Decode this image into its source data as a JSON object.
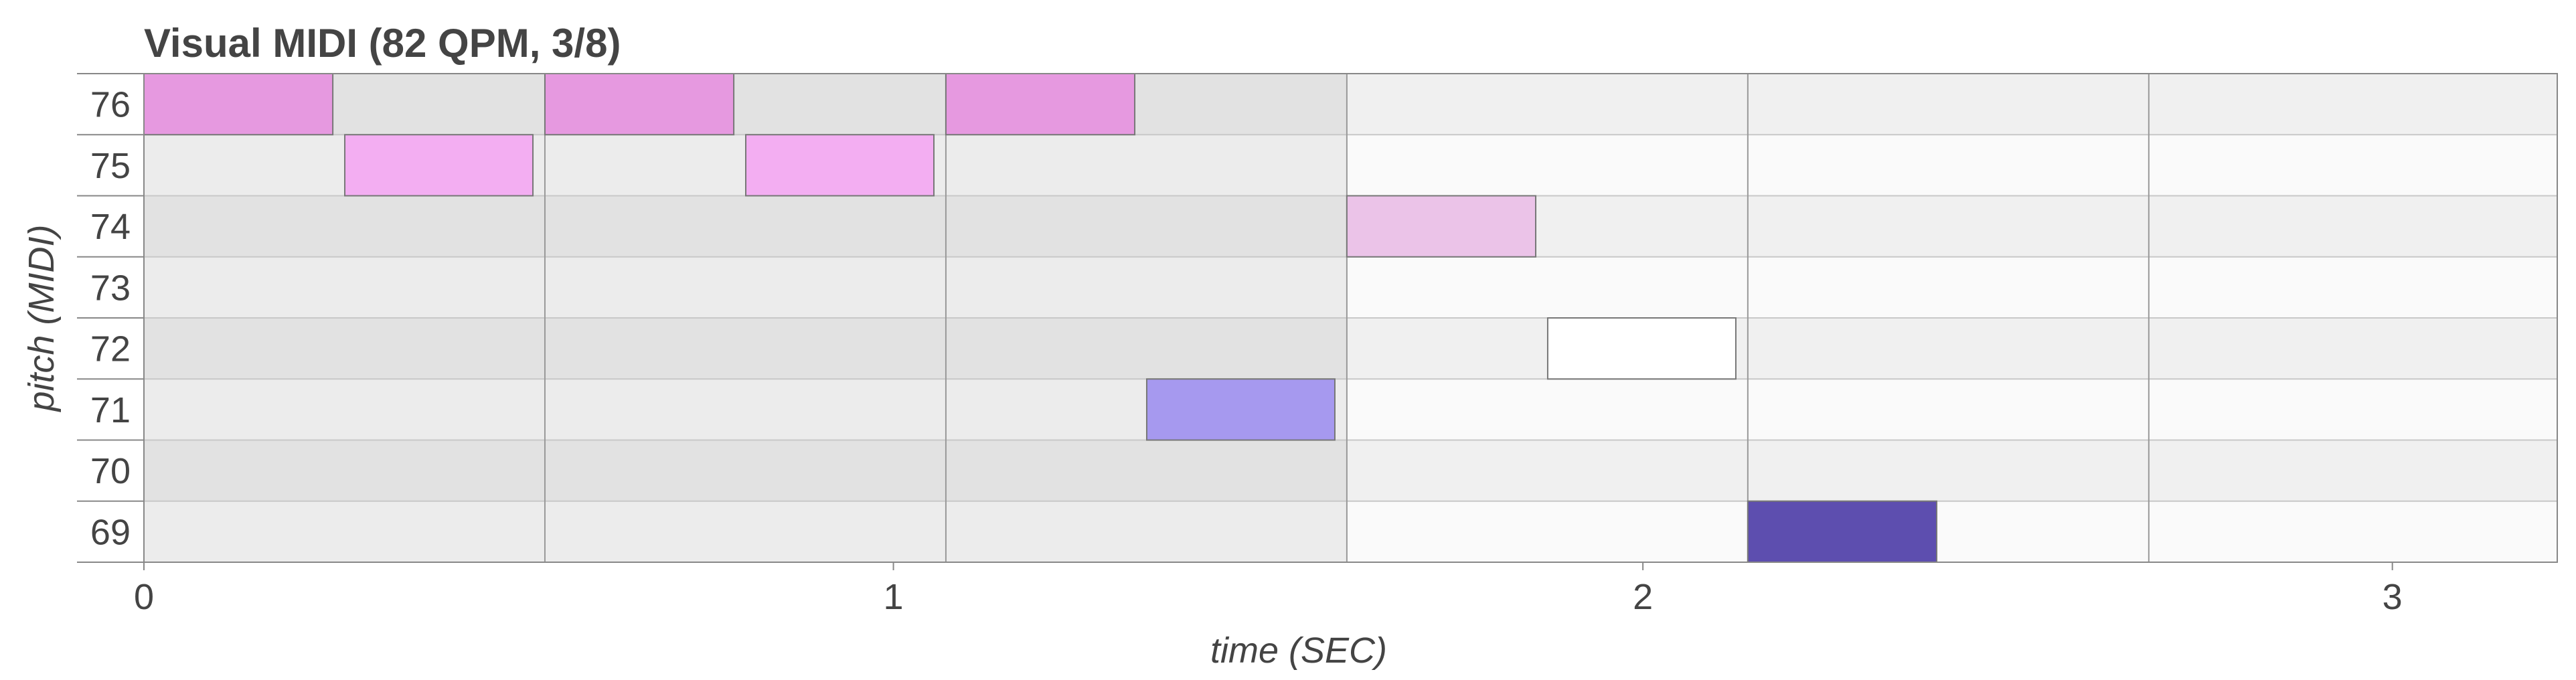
{
  "chart_data": {
    "type": "piano-roll",
    "title": "Visual MIDI (82 QPM, 3/8)",
    "xlabel": "time (SEC)",
    "ylabel": "pitch (MIDI)",
    "xlim": [
      0,
      3.22
    ],
    "ylim": [
      69,
      76
    ],
    "xticks": [
      0,
      1,
      2,
      3
    ],
    "yticks": [
      69,
      70,
      71,
      72,
      73,
      74,
      75,
      76
    ],
    "measure_lines": [
      0.535,
      1.07,
      1.605,
      2.14,
      2.675
    ],
    "shaded_until": 1.605,
    "grid": true,
    "colors": {
      "row_dark_shaded": "#e2e2e2",
      "row_light_shaded": "#ececec",
      "row_dark": "#f0f0f0",
      "row_light": "#fafafa",
      "grid_line": "#c8c8c8",
      "measure_line": "#999999",
      "axis_line": "#888888",
      "text": "#444444"
    },
    "notes": [
      {
        "pitch": 76,
        "start": 0.0,
        "end": 0.252,
        "color": "#e699e0"
      },
      {
        "pitch": 75,
        "start": 0.268,
        "end": 0.519,
        "color": "#f3aef2"
      },
      {
        "pitch": 76,
        "start": 0.535,
        "end": 0.787,
        "color": "#e699e0"
      },
      {
        "pitch": 75,
        "start": 0.803,
        "end": 1.054,
        "color": "#f3aef2"
      },
      {
        "pitch": 76,
        "start": 1.07,
        "end": 1.322,
        "color": "#e699e0"
      },
      {
        "pitch": 71,
        "start": 1.338,
        "end": 1.589,
        "color": "#a699ef"
      },
      {
        "pitch": 74,
        "start": 1.605,
        "end": 1.857,
        "color": "#ebc3e8"
      },
      {
        "pitch": 72,
        "start": 1.873,
        "end": 2.124,
        "color": "#ffffff"
      },
      {
        "pitch": 69,
        "start": 2.14,
        "end": 2.392,
        "color": "#5d4eaf"
      }
    ]
  }
}
